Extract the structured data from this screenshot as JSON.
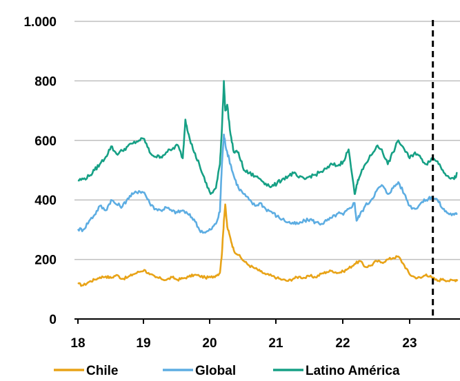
{
  "chart_data": {
    "type": "line",
    "title": "",
    "xlabel": "",
    "ylabel": "",
    "ylim": [
      0,
      1000
    ],
    "xlim": [
      18,
      23.72
    ],
    "y_ticks": [
      0,
      200,
      400,
      600,
      800,
      1000
    ],
    "y_tick_labels": [
      "0",
      "200",
      "400",
      "600",
      "800",
      "1.000"
    ],
    "x_ticks": [
      18,
      19,
      20,
      21,
      22,
      23
    ],
    "x_tick_labels": [
      "18",
      "19",
      "20",
      "21",
      "22",
      "23"
    ],
    "grid": "horizontal",
    "legend_position": "bottom",
    "vline_x": 23.35,
    "series": [
      {
        "name": "Chile",
        "color": "#E8A317",
        "x": [
          18.0,
          18.08,
          18.17,
          18.25,
          18.33,
          18.42,
          18.5,
          18.58,
          18.67,
          18.75,
          18.83,
          18.92,
          19.0,
          19.08,
          19.17,
          19.25,
          19.33,
          19.42,
          19.5,
          19.58,
          19.67,
          19.75,
          19.83,
          19.92,
          20.0,
          20.08,
          20.14,
          20.17,
          20.2,
          20.22,
          20.25,
          20.3,
          20.35,
          20.42,
          20.5,
          20.58,
          20.67,
          20.75,
          20.83,
          20.92,
          21.0,
          21.08,
          21.17,
          21.25,
          21.33,
          21.42,
          21.5,
          21.58,
          21.67,
          21.75,
          21.83,
          21.92,
          22.0,
          22.08,
          22.17,
          22.25,
          22.33,
          22.42,
          22.5,
          22.58,
          22.67,
          22.75,
          22.83,
          22.92,
          23.0,
          23.08,
          23.17,
          23.25,
          23.33,
          23.42,
          23.5,
          23.58,
          23.67,
          23.72
        ],
        "values": [
          118,
          113,
          125,
          132,
          140,
          143,
          138,
          148,
          135,
          140,
          150,
          158,
          165,
          150,
          140,
          136,
          131,
          140,
          132,
          136,
          142,
          148,
          145,
          139,
          140,
          146,
          155,
          220,
          330,
          385,
          310,
          270,
          230,
          215,
          195,
          180,
          170,
          160,
          150,
          145,
          138,
          132,
          128,
          136,
          142,
          138,
          145,
          140,
          152,
          158,
          162,
          155,
          160,
          170,
          185,
          195,
          175,
          180,
          195,
          190,
          200,
          205,
          210,
          180,
          150,
          140,
          138,
          150,
          140,
          128,
          135,
          128,
          130,
          133
        ]
      },
      {
        "name": "Global",
        "color": "#5DADE2",
        "x": [
          18.0,
          18.08,
          18.17,
          18.25,
          18.33,
          18.42,
          18.5,
          18.58,
          18.67,
          18.75,
          18.83,
          18.92,
          19.0,
          19.08,
          19.17,
          19.25,
          19.33,
          19.42,
          19.5,
          19.58,
          19.67,
          19.75,
          19.83,
          19.92,
          20.0,
          20.08,
          20.14,
          20.17,
          20.2,
          20.22,
          20.25,
          20.3,
          20.35,
          20.42,
          20.5,
          20.58,
          20.67,
          20.75,
          20.83,
          20.92,
          21.0,
          21.08,
          21.17,
          21.25,
          21.33,
          21.42,
          21.5,
          21.58,
          21.67,
          21.75,
          21.83,
          21.92,
          22.0,
          22.08,
          22.17,
          22.2,
          22.25,
          22.33,
          22.42,
          22.5,
          22.58,
          22.67,
          22.75,
          22.83,
          22.92,
          23.0,
          23.08,
          23.17,
          23.25,
          23.33,
          23.42,
          23.5,
          23.58,
          23.67,
          23.72
        ],
        "values": [
          302,
          300,
          330,
          350,
          380,
          365,
          400,
          385,
          378,
          405,
          420,
          430,
          425,
          390,
          370,
          365,
          375,
          362,
          358,
          365,
          350,
          335,
          300,
          290,
          300,
          320,
          360,
          520,
          620,
          590,
          560,
          520,
          480,
          440,
          420,
          400,
          380,
          390,
          370,
          360,
          345,
          335,
          325,
          320,
          320,
          330,
          335,
          325,
          320,
          330,
          340,
          355,
          350,
          370,
          390,
          330,
          350,
          380,
          400,
          430,
          450,
          420,
          440,
          460,
          420,
          380,
          370,
          390,
          400,
          410,
          400,
          370,
          355,
          350,
          352
        ]
      },
      {
        "name": "Latino América",
        "color": "#16A085",
        "x": [
          18.0,
          18.08,
          18.17,
          18.25,
          18.33,
          18.42,
          18.5,
          18.58,
          18.67,
          18.75,
          18.83,
          18.92,
          19.0,
          19.08,
          19.17,
          19.25,
          19.33,
          19.42,
          19.5,
          19.58,
          19.62,
          19.67,
          19.75,
          19.83,
          19.92,
          20.0,
          20.08,
          20.14,
          20.17,
          20.2,
          20.22,
          20.25,
          20.3,
          20.35,
          20.42,
          20.5,
          20.58,
          20.67,
          20.75,
          20.83,
          20.92,
          21.0,
          21.08,
          21.17,
          21.25,
          21.33,
          21.42,
          21.5,
          21.58,
          21.67,
          21.75,
          21.83,
          21.92,
          22.0,
          22.08,
          22.17,
          22.2,
          22.25,
          22.33,
          22.42,
          22.5,
          22.58,
          22.67,
          22.75,
          22.83,
          22.92,
          23.0,
          23.08,
          23.17,
          23.25,
          23.33,
          23.42,
          23.5,
          23.58,
          23.67,
          23.72
        ],
        "values": [
          466,
          470,
          480,
          500,
          520,
          545,
          580,
          555,
          565,
          580,
          590,
          600,
          605,
          560,
          545,
          545,
          560,
          570,
          585,
          540,
          670,
          620,
          560,
          520,
          460,
          420,
          440,
          520,
          640,
          800,
          700,
          720,
          620,
          560,
          560,
          500,
          490,
          480,
          470,
          455,
          445,
          455,
          470,
          480,
          490,
          475,
          470,
          480,
          485,
          495,
          505,
          520,
          515,
          530,
          570,
          420,
          450,
          480,
          520,
          550,
          580,
          570,
          520,
          560,
          600,
          570,
          540,
          560,
          540,
          520,
          540,
          530,
          500,
          480,
          470,
          490
        ]
      }
    ]
  }
}
